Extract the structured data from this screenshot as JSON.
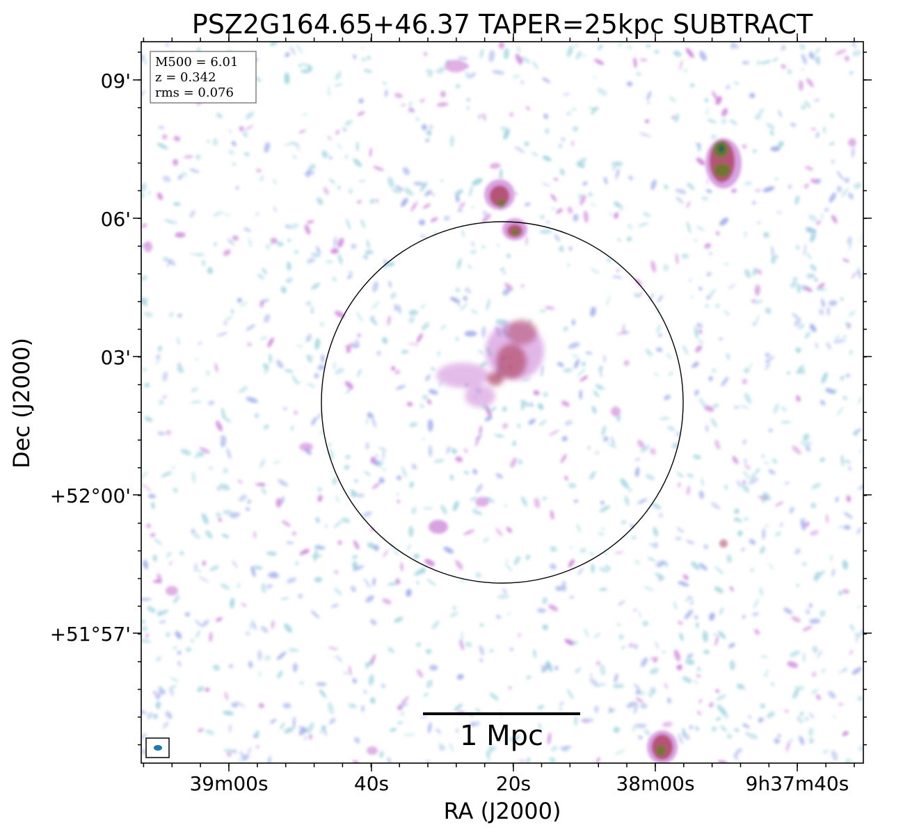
{
  "figure": {
    "title": "PSZ2G164.65+46.37 TAPER=25kpc SUBTRACT",
    "xlabel": "RA (J2000)",
    "ylabel": "Dec (J2000)",
    "x_ticks": [
      "39m00s",
      "40s",
      "20s",
      "38m00s",
      "9h37m40s"
    ],
    "y_ticks": [
      "09'",
      "06'",
      "03'",
      "+52°00'",
      "+51°57'"
    ],
    "info_box": {
      "line1": "M500 = 6.01",
      "line2": "z = 0.342",
      "line3": "rms = 0.076"
    },
    "scalebar_label": "1 Mpc",
    "colors": {
      "faint": "#9fd4de",
      "low": "#9aa8ea",
      "mid": "#c97ad6",
      "high": "#b24d6a",
      "peak": "#6b7a2a",
      "core": "#1e6a4e",
      "beam": "#1f77b4"
    }
  }
}
